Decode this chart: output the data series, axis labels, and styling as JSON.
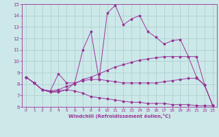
{
  "title": "",
  "xlabel": "Windchill (Refroidissement éolien,°C)",
  "xlim": [
    -0.5,
    23.5
  ],
  "ylim": [
    6,
    15
  ],
  "xticks": [
    0,
    1,
    2,
    3,
    4,
    5,
    6,
    7,
    8,
    9,
    10,
    11,
    12,
    13,
    14,
    15,
    16,
    17,
    18,
    19,
    20,
    21,
    22,
    23
  ],
  "yticks": [
    6,
    7,
    8,
    9,
    10,
    11,
    12,
    13,
    14,
    15
  ],
  "bg_color": "#cce8e8",
  "grid_color": "#aacccc",
  "line_color": "#993399",
  "curves": [
    [
      8.6,
      8.1,
      7.5,
      7.4,
      8.9,
      8.1,
      8.1,
      8.3,
      8.4,
      8.4,
      8.3,
      8.2,
      8.1,
      8.1,
      8.1,
      8.1,
      8.1,
      8.2,
      8.3,
      8.4,
      8.5,
      8.5,
      7.9,
      6.1
    ],
    [
      8.6,
      8.1,
      7.5,
      7.3,
      7.4,
      7.5,
      7.4,
      7.2,
      6.9,
      6.8,
      6.7,
      6.6,
      6.5,
      6.4,
      6.4,
      6.3,
      6.3,
      6.3,
      6.2,
      6.2,
      6.2,
      6.1,
      6.1,
      6.1
    ],
    [
      8.6,
      8.1,
      7.5,
      7.4,
      7.5,
      7.8,
      8.0,
      8.4,
      8.6,
      8.9,
      9.2,
      9.5,
      9.7,
      9.9,
      10.1,
      10.2,
      10.3,
      10.4,
      10.4,
      10.4,
      10.4,
      10.4,
      7.9,
      6.1
    ],
    [
      8.6,
      8.1,
      7.5,
      7.3,
      7.3,
      7.5,
      8.1,
      11.0,
      12.6,
      8.4,
      14.2,
      14.9,
      13.2,
      13.7,
      14.0,
      12.6,
      12.1,
      11.5,
      11.8,
      11.9,
      10.4,
      8.6,
      7.9,
      6.1
    ]
  ]
}
